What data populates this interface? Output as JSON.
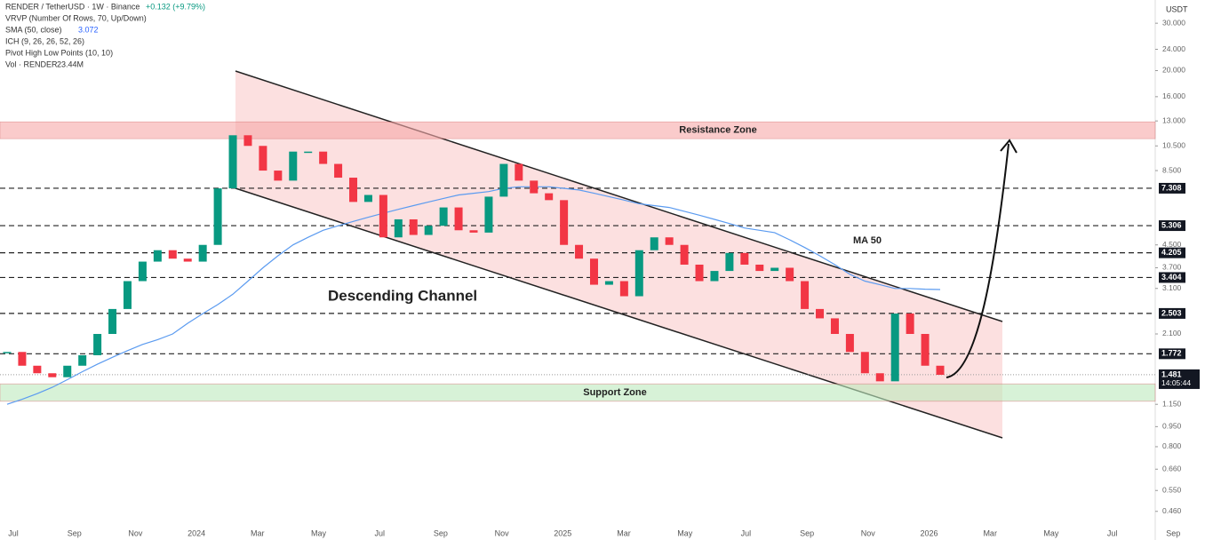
{
  "legend": {
    "symbol": "RENDER / TetherUSD · 1W · Binance",
    "change": "+0.132 (+9.79%)",
    "lines": [
      "VRVP (Number Of Rows, 70, Up/Down)",
      "SMA (50, close)",
      "ICH (9, 26, 26, 52, 26)",
      "Pivot High Low Points (10, 10)",
      "Vol · RENDER"
    ],
    "sma_value": "3.072",
    "vol_value": "23.44M"
  },
  "chart_data": {
    "type": "candlestick",
    "scale": "log",
    "currency": "USDT",
    "ylim": [
      0.36,
      36.6
    ],
    "yticks": [
      {
        "value": 30,
        "label": "30.000"
      },
      {
        "value": 24,
        "label": "24.000"
      },
      {
        "value": 20,
        "label": "20.000"
      },
      {
        "value": 16,
        "label": "16.000"
      },
      {
        "value": 13,
        "label": "13.000"
      },
      {
        "value": 10.5,
        "label": "10.500"
      },
      {
        "value": 8.5,
        "label": "8.500"
      },
      {
        "value": 4.5,
        "label": "4.500"
      },
      {
        "value": 3.7,
        "label": "3.700"
      },
      {
        "value": 3.1,
        "label": "3.100"
      },
      {
        "value": 2.1,
        "label": "2.100"
      },
      {
        "value": 1.15,
        "label": "1.150"
      },
      {
        "value": 0.95,
        "label": "0.950"
      },
      {
        "value": 0.8,
        "label": "0.800"
      },
      {
        "value": 0.66,
        "label": "0.660"
      },
      {
        "value": 0.55,
        "label": "0.550"
      },
      {
        "value": 0.46,
        "label": "0.460"
      }
    ],
    "levels": [
      7.308,
      5.306,
      4.205,
      3.404,
      2.503,
      1.772
    ],
    "current_price": 1.481,
    "countdown": "14:05:44",
    "xlabels": [
      "Jul",
      "Sep",
      "Nov",
      "2024",
      "Mar",
      "May",
      "Jul",
      "Sep",
      "Nov",
      "2025",
      "Mar",
      "May",
      "Jul",
      "Sep",
      "Nov",
      "2026",
      "Mar",
      "May",
      "Jul",
      "Sep"
    ],
    "closes": [
      1.8,
      1.6,
      1.5,
      1.45,
      1.6,
      1.75,
      2.1,
      2.6,
      3.3,
      3.9,
      4.3,
      4.0,
      3.9,
      4.5,
      7.3,
      11.5,
      10.5,
      8.5,
      7.8,
      10.0,
      10.0,
      9.0,
      8.0,
      6.5,
      6.9,
      4.8,
      5.6,
      4.9,
      5.3,
      6.2,
      5.1,
      5.0,
      6.8,
      9.0,
      7.8,
      7.0,
      6.6,
      4.5,
      4.0,
      3.2,
      3.3,
      2.9,
      4.3,
      4.8,
      4.5,
      3.8,
      3.3,
      3.6,
      4.2,
      3.8,
      3.6,
      3.7,
      3.3,
      2.6,
      2.4,
      2.1,
      1.8,
      1.5,
      1.4,
      2.5,
      2.1,
      1.6,
      1.48
    ],
    "ma50": [
      1.15,
      1.2,
      1.26,
      1.33,
      1.42,
      1.52,
      1.62,
      1.72,
      1.82,
      1.92,
      2.0,
      2.1,
      2.3,
      2.5,
      2.7,
      2.95,
      3.3,
      3.7,
      4.1,
      4.5,
      4.8,
      5.1,
      5.3,
      5.5,
      5.7,
      5.9,
      6.1,
      6.3,
      6.5,
      6.7,
      6.9,
      7.0,
      7.1,
      7.3,
      7.4,
      7.4,
      7.4,
      7.3,
      7.2,
      7.0,
      6.8,
      6.6,
      6.4,
      6.3,
      6.2,
      6.0,
      5.8,
      5.6,
      5.4,
      5.2,
      5.1,
      5.0,
      4.7,
      4.4,
      4.1,
      3.8,
      3.5,
      3.3,
      3.2,
      3.1,
      3.1,
      3.08,
      3.07
    ],
    "resistance_zone": [
      11.17,
      12.9
    ],
    "support_zone": [
      1.18,
      1.37
    ],
    "annotations": {
      "resistance": "Resistance Zone",
      "support": "Support Zone",
      "channel": "Descending Channel",
      "ma": "MA 50"
    }
  }
}
